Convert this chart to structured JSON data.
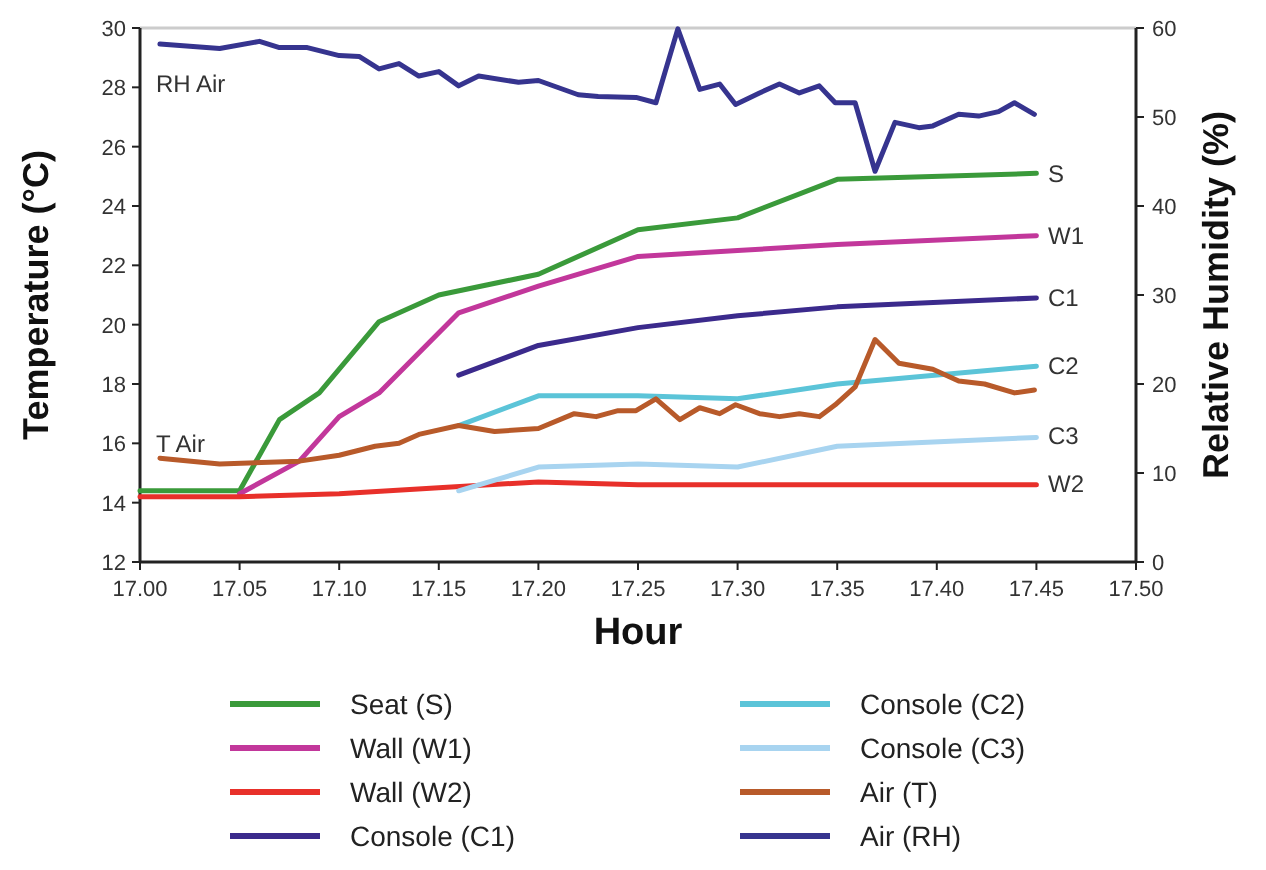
{
  "chart_data": {
    "type": "line",
    "xlabel": "Hour",
    "ylabel": "Temperature (°C)",
    "y2label": "Relative Humidity (%)",
    "xlim": [
      17,
      17.5
    ],
    "xticks": [
      {
        "value": 17,
        "label": "17.00"
      },
      {
        "value": 17.05,
        "label": "17.05"
      },
      {
        "value": 17.1,
        "label": "17.10"
      },
      {
        "value": 17.15,
        "label": "17.15"
      },
      {
        "value": 17.2,
        "label": "17.20"
      },
      {
        "value": 17.25,
        "label": "17.25"
      },
      {
        "value": 17.3,
        "label": "17.30"
      },
      {
        "value": 17.35,
        "label": "17.35"
      },
      {
        "value": 17.4,
        "label": "17.40"
      },
      {
        "value": 17.45,
        "label": "17.45"
      },
      {
        "value": 17.5,
        "label": "17.50"
      }
    ],
    "ylim": [
      12,
      30
    ],
    "yticks": [
      12,
      14,
      16,
      18,
      20,
      22,
      24,
      26,
      28,
      30
    ],
    "y2lim": [
      0,
      60
    ],
    "y2ticks": [
      0,
      10,
      20,
      30,
      40,
      50,
      60
    ],
    "grid": false,
    "legend": "bottom",
    "marker": "none",
    "line_style": "solid",
    "series": [
      {
        "name": "Seat (S)",
        "color": "#3a9a3a",
        "x": [
          17,
          17.05,
          17.07,
          17.09,
          17.12,
          17.15,
          17.2,
          17.25,
          17.3,
          17.35,
          17.45
        ],
        "values": [
          14.4,
          14.4,
          16.8,
          17.7,
          20.1,
          21.0,
          21.7,
          23.2,
          23.6,
          24.9,
          25.1
        ]
      },
      {
        "name": "Wall (W1)",
        "color": "#c2379b",
        "x": [
          17.05,
          17.08,
          17.1,
          17.12,
          17.16,
          17.2,
          17.25,
          17.3,
          17.35,
          17.45
        ],
        "values": [
          14.3,
          15.4,
          16.9,
          17.7,
          20.4,
          21.3,
          22.3,
          22.5,
          22.7,
          23.0
        ]
      },
      {
        "name": "Wall (W2)",
        "color": "#e8302a",
        "x": [
          17,
          17.05,
          17.1,
          17.15,
          17.2,
          17.25,
          17.45
        ],
        "values": [
          14.2,
          14.2,
          14.3,
          14.5,
          14.7,
          14.6,
          14.6
        ]
      },
      {
        "name": "Console (C1)",
        "color": "#3b2a8c",
        "x": [
          17.16,
          17.2,
          17.25,
          17.3,
          17.35,
          17.45
        ],
        "values": [
          18.3,
          19.3,
          19.9,
          20.3,
          20.6,
          20.9
        ]
      },
      {
        "name": "Console (C2)",
        "color": "#5bc4d8",
        "x": [
          17.16,
          17.2,
          17.25,
          17.3,
          17.35,
          17.45
        ],
        "values": [
          16.6,
          17.6,
          17.6,
          17.5,
          18.0,
          18.6
        ]
      },
      {
        "name": "Console (C3)",
        "color": "#a8d4f0",
        "x": [
          17.16,
          17.2,
          17.25,
          17.3,
          17.35,
          17.45
        ],
        "values": [
          14.4,
          15.2,
          15.3,
          15.2,
          15.9,
          16.2
        ]
      },
      {
        "name": "Air (T)",
        "color": "#b85a2a",
        "x": [
          17.01,
          17.04,
          17.08,
          17.1,
          17.118,
          17.13,
          17.14,
          17.16,
          17.178,
          17.2,
          17.218,
          17.229,
          17.24,
          17.249,
          17.259,
          17.271,
          17.281,
          17.291,
          17.299,
          17.311,
          17.321,
          17.331,
          17.341,
          17.349,
          17.359,
          17.369,
          17.381,
          17.398,
          17.411,
          17.424,
          17.439,
          17.449
        ],
        "values": [
          15.5,
          15.3,
          15.4,
          15.6,
          15.9,
          16.0,
          16.3,
          16.6,
          16.4,
          16.5,
          17.0,
          16.9,
          17.1,
          17.1,
          17.5,
          16.8,
          17.2,
          17.0,
          17.3,
          17.0,
          16.9,
          17.0,
          16.9,
          17.3,
          17.9,
          19.5,
          18.7,
          18.5,
          18.1,
          18.0,
          17.7,
          17.8
        ]
      },
      {
        "name": "Air (RH)",
        "color": "#36348f",
        "axis": "y2",
        "x": [
          17.01,
          17.04,
          17.06,
          17.07,
          17.084,
          17.1,
          17.11,
          17.12,
          17.13,
          17.14,
          17.15,
          17.16,
          17.17,
          17.19,
          17.2,
          17.22,
          17.23,
          17.249,
          17.259,
          17.27,
          17.281,
          17.291,
          17.299,
          17.311,
          17.321,
          17.331,
          17.341,
          17.349,
          17.359,
          17.369,
          17.379,
          17.391,
          17.398,
          17.411,
          17.421,
          17.431,
          17.439,
          17.449
        ],
        "values": [
          58.2,
          57.7,
          58.5,
          57.8,
          57.8,
          56.9,
          56.8,
          55.4,
          56.0,
          54.6,
          55.1,
          53.5,
          54.6,
          53.9,
          54.1,
          52.5,
          52.3,
          52.2,
          51.6,
          59.9,
          53.1,
          53.7,
          51.4,
          52.7,
          53.7,
          52.7,
          53.5,
          51.6,
          51.6,
          43.9,
          49.4,
          48.8,
          49.0,
          50.3,
          50.1,
          50.6,
          51.6,
          50.3
        ]
      }
    ],
    "annotations": [
      "RH Air",
      "T Air",
      "S",
      "W1",
      "C1",
      "C2",
      "C3",
      "W2"
    ]
  }
}
